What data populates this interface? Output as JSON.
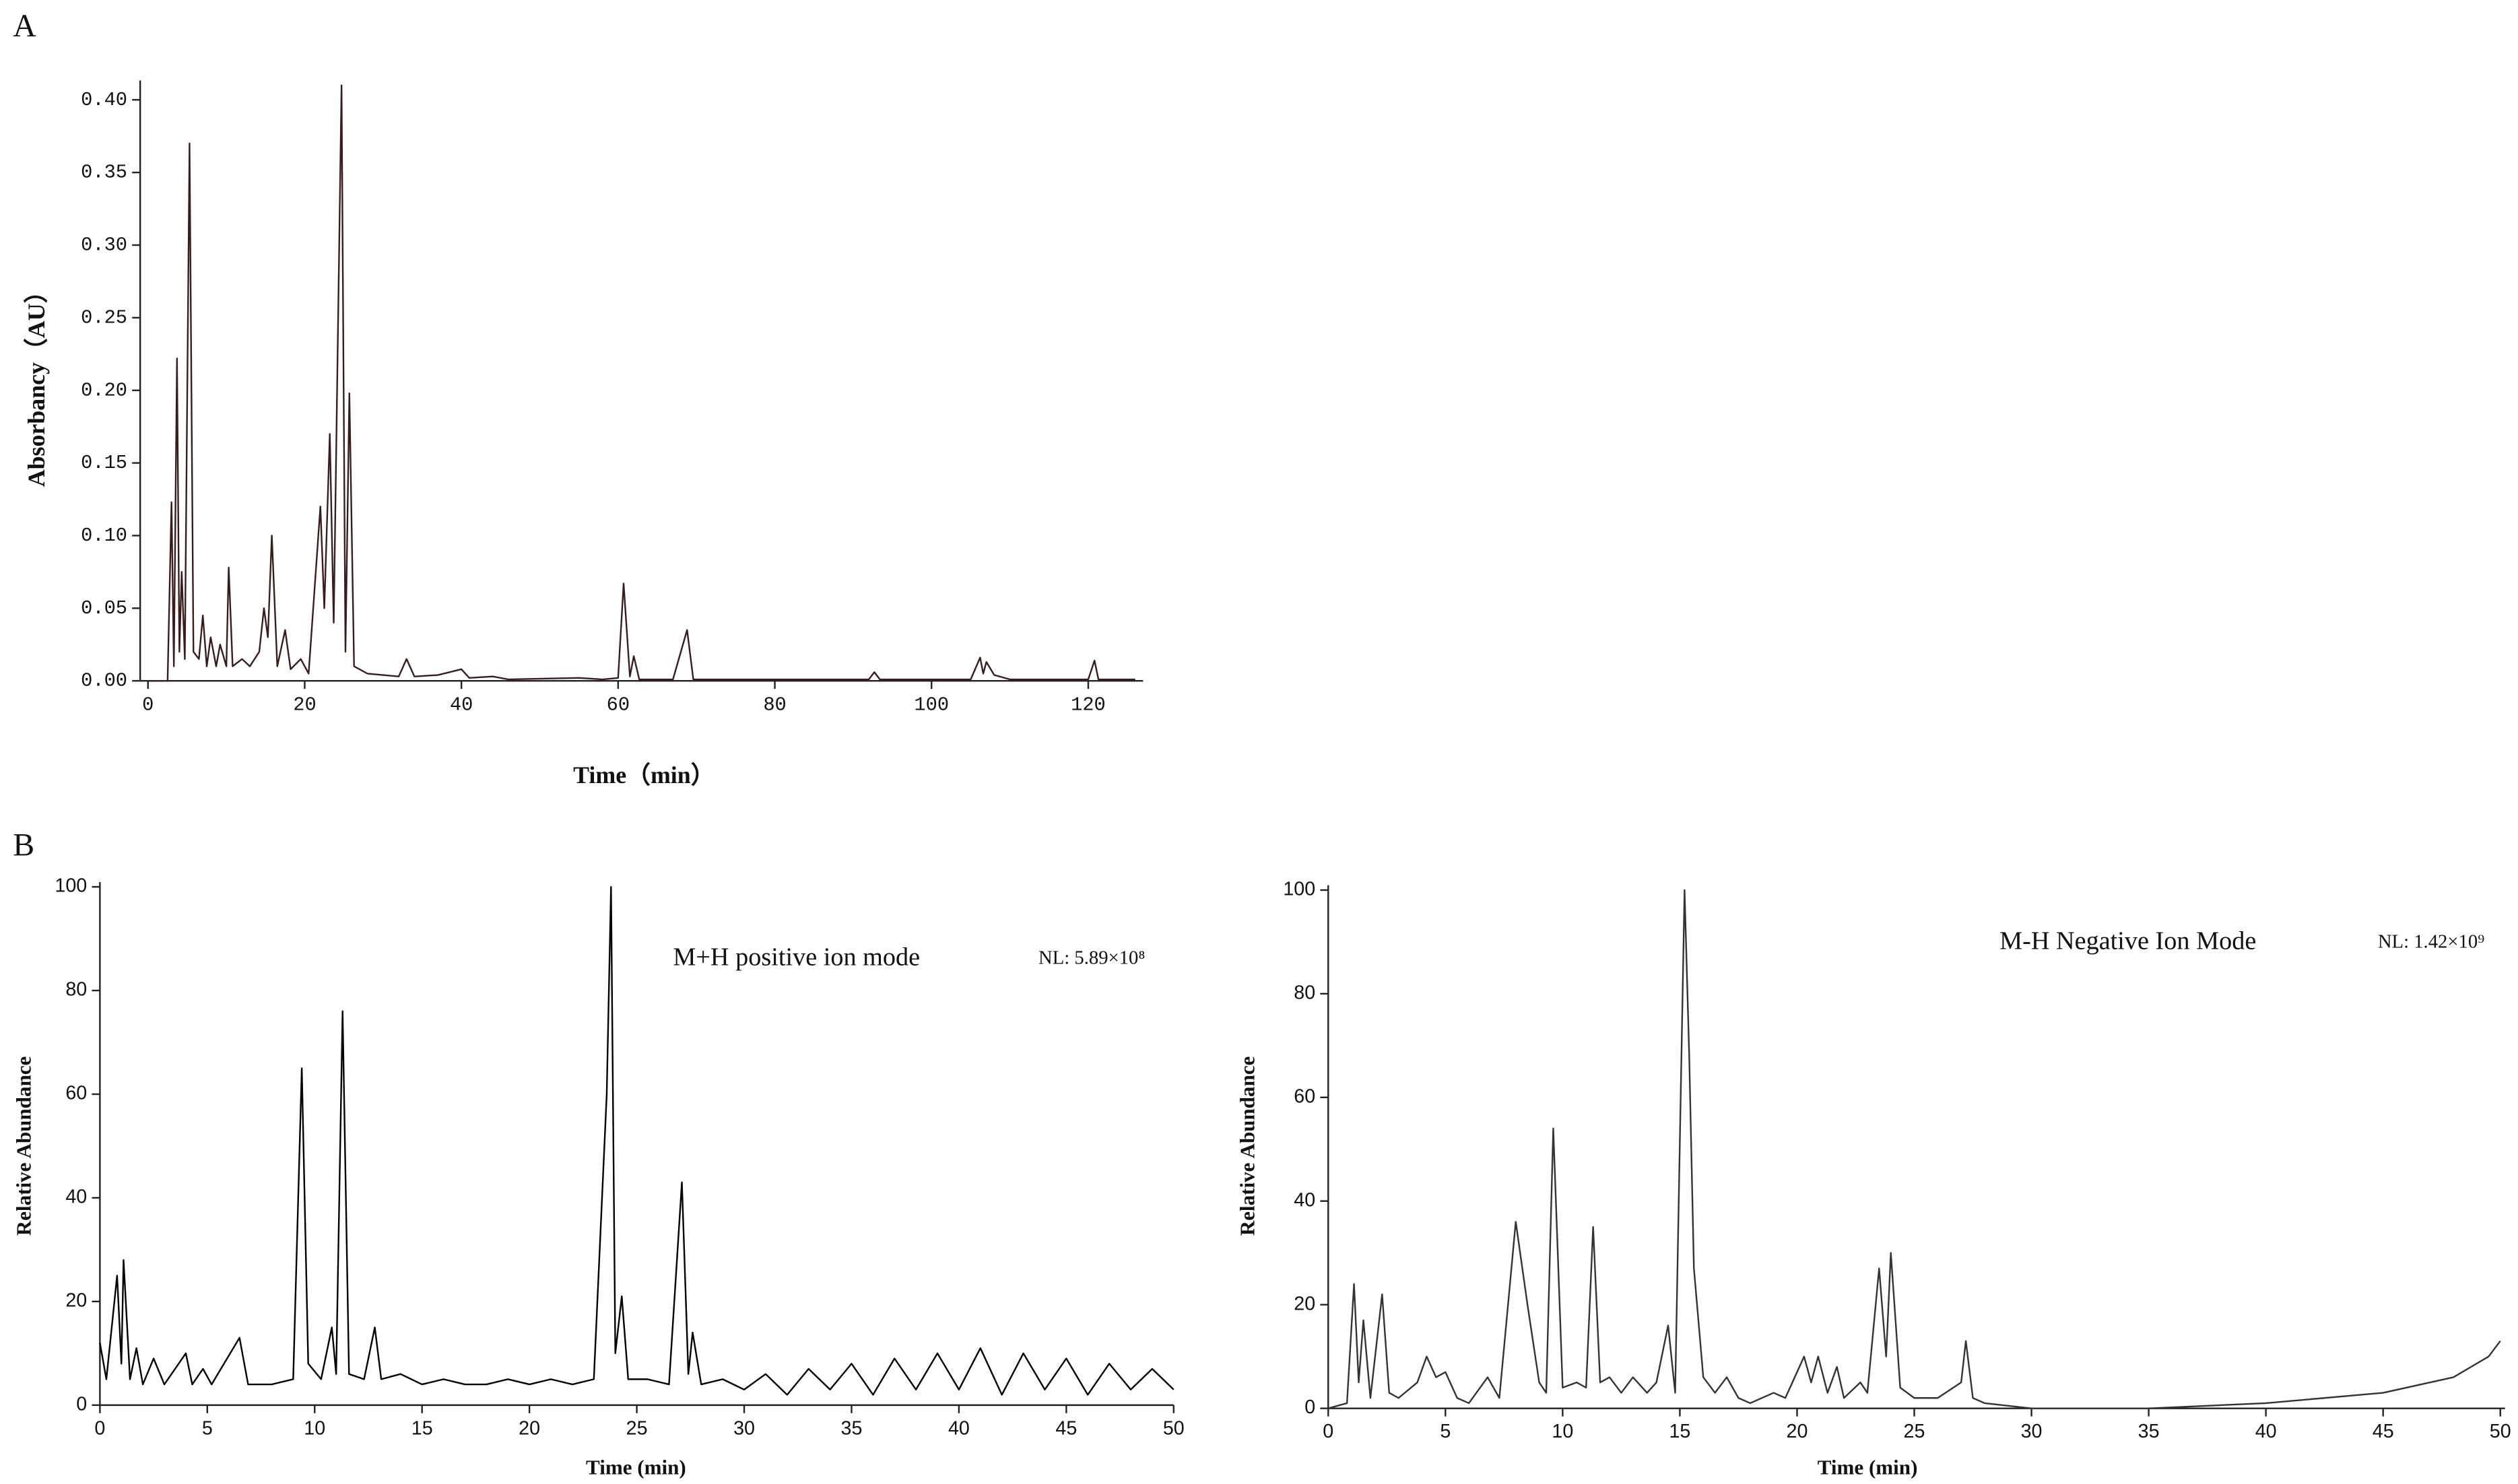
{
  "chart_data": [
    {
      "type": "line",
      "label": "A",
      "x_label": "Time（min）",
      "y_label": "Absorbancy（AU）",
      "xlim": [
        -1,
        127
      ],
      "ylim": [
        0,
        0.41
      ],
      "xticks": [
        0,
        20,
        40,
        60,
        80,
        100,
        120
      ],
      "yticks": [
        {
          "value": 0,
          "label": "0.00"
        },
        {
          "value": 0.05,
          "label": "0.05"
        },
        {
          "value": 0.1,
          "label": "0.10"
        },
        {
          "value": 0.15,
          "label": "0.15"
        },
        {
          "value": 0.2,
          "label": "0.20"
        },
        {
          "value": 0.25,
          "label": "0.25"
        },
        {
          "value": 0.3,
          "label": "0.30"
        },
        {
          "value": 0.35,
          "label": "0.35"
        },
        {
          "value": 0.4,
          "label": "0.40"
        }
      ],
      "series": [
        {
          "color": "#3b1c1c",
          "x": [
            0,
            2.5,
            3,
            3.3,
            3.7,
            4,
            4.3,
            4.7,
            5.3,
            5.8,
            6.5,
            7,
            7.5,
            8,
            8.7,
            9.2,
            10,
            10.3,
            10.8,
            12,
            13,
            14.2,
            14.8,
            15.3,
            15.8,
            16.5,
            17.5,
            18.2,
            19.5,
            20.5,
            22,
            22.5,
            23.2,
            23.7,
            24.7,
            25.2,
            25.7,
            26.3,
            28,
            32,
            33,
            34,
            37,
            40,
            41,
            44,
            46,
            55,
            58,
            60,
            60.7,
            61.5,
            62,
            62.7,
            67,
            68.8,
            69.6,
            80,
            92,
            92.7,
            93.4,
            105,
            106.2,
            106.6,
            107,
            108,
            110,
            120,
            120.8,
            121.3,
            126
          ],
          "values": [
            0,
            0,
            0.123,
            0.01,
            0.222,
            0.02,
            0.075,
            0.015,
            0.37,
            0.02,
            0.015,
            0.045,
            0.01,
            0.03,
            0.01,
            0.025,
            0.01,
            0.078,
            0.01,
            0.015,
            0.01,
            0.02,
            0.05,
            0.03,
            0.1,
            0.01,
            0.035,
            0.008,
            0.015,
            0.005,
            0.12,
            0.05,
            0.17,
            0.04,
            0.41,
            0.02,
            0.198,
            0.01,
            0.005,
            0.003,
            0.015,
            0.003,
            0.004,
            0.008,
            0.002,
            0.003,
            0.001,
            0.002,
            0.001,
            0.002,
            0.067,
            0.003,
            0.017,
            0.001,
            0.001,
            0.035,
            0.001,
            0.001,
            0.001,
            0.006,
            0.001,
            0.001,
            0.016,
            0.005,
            0.013,
            0.004,
            0.001,
            0.001,
            0.014,
            0.001,
            0.001
          ]
        }
      ]
    },
    {
      "type": "line",
      "label": "B",
      "x_label": "Time (min)",
      "y_label": "Relative Abundance",
      "annotations": [
        "M+H positive ion mode",
        "NL: 5.89×10⁸"
      ],
      "xlim": [
        0,
        50
      ],
      "ylim": [
        0,
        100
      ],
      "xticks": [
        0,
        5,
        10,
        15,
        20,
        25,
        30,
        35,
        40,
        45,
        50
      ],
      "yticks": [
        0,
        20,
        40,
        60,
        80,
        100
      ],
      "series": [
        {
          "color": "#000000",
          "x": [
            0,
            0.3,
            0.8,
            1,
            1.1,
            1.4,
            1.7,
            2,
            2.5,
            3,
            4,
            4.3,
            4.8,
            5.2,
            6.5,
            6.9,
            8,
            9,
            9.4,
            9.7,
            10.3,
            10.8,
            11,
            11.3,
            11.6,
            12.3,
            12.8,
            13.1,
            14,
            15,
            16,
            17,
            18,
            19,
            20,
            21,
            22,
            23,
            23.6,
            23.8,
            24,
            24.3,
            24.6,
            25.5,
            26.5,
            27.1,
            27.4,
            27.6,
            28,
            29,
            30,
            31,
            32,
            33,
            34,
            35,
            36,
            37,
            38,
            39,
            40,
            41,
            42,
            43,
            44,
            45,
            46,
            47,
            48,
            49,
            50
          ],
          "values": [
            12,
            5,
            25,
            8,
            28,
            5,
            11,
            4,
            9,
            4,
            10,
            4,
            7,
            4,
            13,
            4,
            4,
            5,
            65,
            8,
            5,
            15,
            6,
            76,
            6,
            5,
            15,
            5,
            6,
            4,
            5,
            4,
            4,
            5,
            4,
            5,
            4,
            5,
            60,
            100,
            10,
            21,
            5,
            5,
            4,
            43,
            6,
            14,
            4,
            5,
            3,
            6,
            2,
            7,
            3,
            8,
            2,
            9,
            3,
            10,
            3,
            11,
            2,
            10,
            3,
            9,
            2,
            8,
            3,
            7,
            3
          ]
        }
      ]
    },
    {
      "type": "line",
      "x_label": "Time (min)",
      "y_label": "Relative Abundance",
      "annotations": [
        "M-H Negative Ion Mode",
        "NL: 1.42×10⁹"
      ],
      "xlim": [
        0,
        50.2
      ],
      "ylim": [
        0,
        100
      ],
      "xticks": [
        0,
        5,
        10,
        15,
        20,
        25,
        30,
        35,
        40,
        45,
        50
      ],
      "yticks": [
        0,
        20,
        40,
        60,
        80,
        100
      ],
      "series": [
        {
          "color": "#333333",
          "x": [
            0,
            0.8,
            1.1,
            1.3,
            1.5,
            1.8,
            2.3,
            2.6,
            3,
            3.8,
            4.2,
            4.6,
            5,
            5.5,
            6,
            6.8,
            7.3,
            8,
            8.5,
            9,
            9.3,
            9.6,
            10,
            10.6,
            11,
            11.3,
            11.6,
            12,
            12.5,
            13,
            13.6,
            14,
            14.5,
            14.8,
            15.2,
            15.4,
            15.6,
            16,
            16.5,
            17,
            17.5,
            18,
            19,
            19.5,
            20.3,
            20.6,
            20.9,
            21.3,
            21.7,
            22,
            22.7,
            23,
            23.5,
            23.8,
            24,
            24.4,
            25,
            26,
            27,
            27.2,
            27.5,
            28,
            30,
            35,
            40,
            45,
            48,
            49.5,
            50
          ],
          "values": [
            0,
            1,
            24,
            5,
            17,
            2,
            22,
            3,
            2,
            5,
            10,
            6,
            7,
            2,
            1,
            6,
            2,
            36,
            20,
            5,
            3,
            54,
            4,
            5,
            4,
            35,
            5,
            6,
            3,
            6,
            3,
            5,
            16,
            3,
            100,
            68,
            27,
            6,
            3,
            6,
            2,
            1,
            3,
            2,
            10,
            5,
            10,
            3,
            8,
            2,
            5,
            3,
            27,
            10,
            30,
            4,
            2,
            2,
            5,
            13,
            2,
            1,
            0,
            0,
            1,
            3,
            6,
            10,
            13
          ]
        }
      ]
    }
  ]
}
